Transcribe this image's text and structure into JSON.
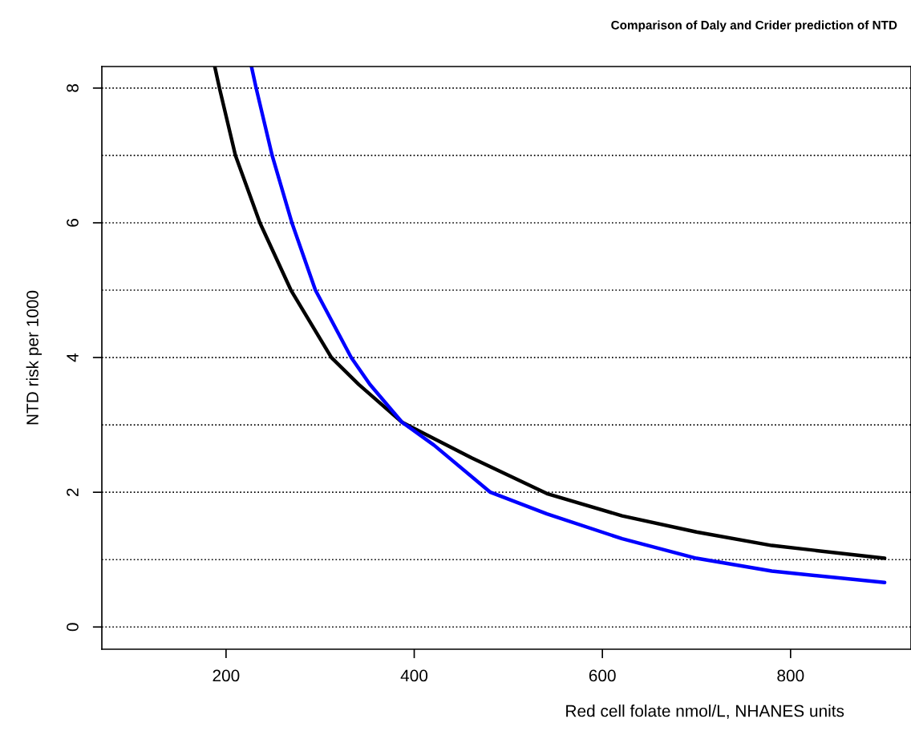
{
  "chart_data": {
    "type": "line",
    "title": "Comparison of Daly and Crider prediction of NTD",
    "xlabel": "Red cell folate nmol/L, NHANES units",
    "ylabel": "NTD risk per 1000",
    "xlim": [
      68,
      928
    ],
    "xticks": [
      200,
      400,
      600,
      800
    ],
    "ylim": [
      -0.33,
      8.32
    ],
    "yticks": [
      0,
      2,
      4,
      6,
      8
    ],
    "grid": false,
    "line_style": "solid",
    "series": [
      {
        "color": "#000000",
        "x": [
          188,
          193,
          210,
          236,
          269,
          312,
          341,
          387,
          461,
          541,
          621,
          700,
          780,
          900
        ],
        "values": [
          8.32,
          8.0,
          7.0,
          6.0,
          5.0,
          4.0,
          3.6,
          3.04,
          2.51,
          1.98,
          1.65,
          1.41,
          1.21,
          1.02
        ]
      },
      {
        "color": "#0000ff",
        "x": [
          227,
          232,
          249,
          270,
          295,
          333,
          353,
          387,
          421,
          481,
          541,
          621,
          700,
          780,
          900
        ],
        "values": [
          8.32,
          8.0,
          7.0,
          6.0,
          5.0,
          4.0,
          3.6,
          3.04,
          2.7,
          2.0,
          1.68,
          1.31,
          1.02,
          0.83,
          0.66
        ]
      }
    ],
    "ref_lines": [
      {
        "axis": "y",
        "value": 0,
        "color": "#000000",
        "line_style": "dotted"
      },
      {
        "axis": "y",
        "value": 1,
        "color": "#000000",
        "line_style": "dotted"
      },
      {
        "axis": "y",
        "value": 2,
        "color": "#000000",
        "line_style": "dotted"
      },
      {
        "axis": "y",
        "value": 3,
        "color": "#000000",
        "line_style": "dotted"
      },
      {
        "axis": "y",
        "value": 4,
        "color": "#000000",
        "line_style": "dotted"
      },
      {
        "axis": "y",
        "value": 5,
        "color": "#000000",
        "line_style": "dotted"
      },
      {
        "axis": "y",
        "value": 6,
        "color": "#000000",
        "line_style": "dotted"
      },
      {
        "axis": "y",
        "value": 7,
        "color": "#000000",
        "line_style": "dotted"
      },
      {
        "axis": "y",
        "value": 8,
        "color": "#000000",
        "line_style": "dotted"
      }
    ]
  }
}
